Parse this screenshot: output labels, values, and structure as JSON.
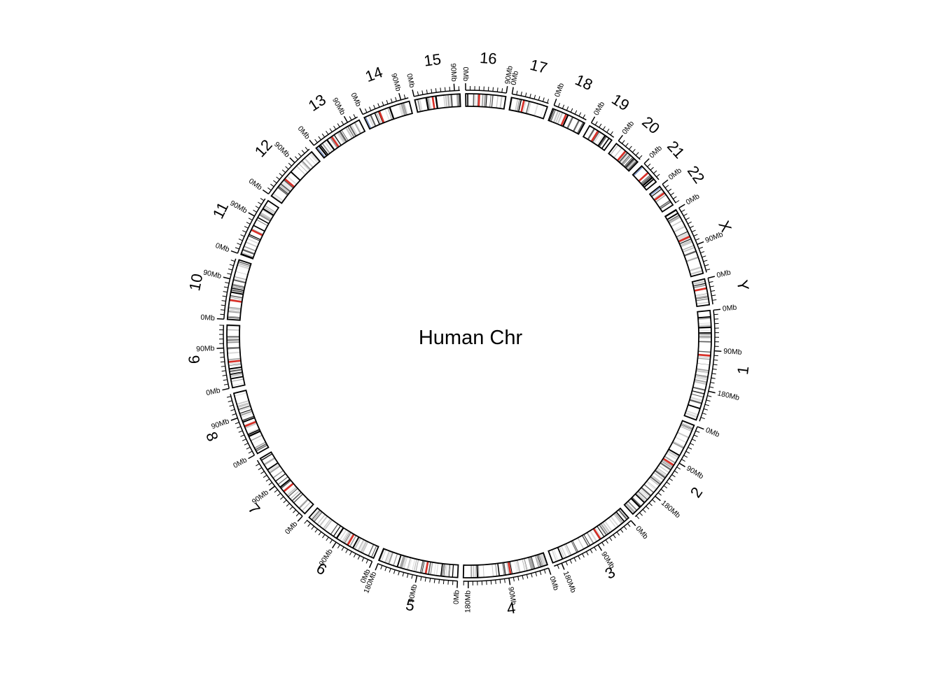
{
  "title": "Human Chr",
  "tick_unit": "Mb",
  "chart_data": {
    "type": "circos-ideogram",
    "center_label": "Human Chr",
    "tick_label_step_mb": 90,
    "minor_tick_step_mb": 10,
    "chromosomes": [
      {
        "name": "1",
        "length_mb": 249,
        "tick_labels": [
          "0Mb",
          "90Mb",
          "180Mb"
        ]
      },
      {
        "name": "2",
        "length_mb": 243,
        "tick_labels": [
          "0Mb",
          "90Mb",
          "180Mb"
        ]
      },
      {
        "name": "3",
        "length_mb": 198,
        "tick_labels": [
          "0Mb",
          "90Mb",
          "180Mb"
        ]
      },
      {
        "name": "4",
        "length_mb": 191,
        "tick_labels": [
          "0Mb",
          "90Mb",
          "180Mb"
        ]
      },
      {
        "name": "5",
        "length_mb": 181,
        "tick_labels": [
          "0Mb",
          "90Mb",
          "180Mb"
        ]
      },
      {
        "name": "6",
        "length_mb": 171,
        "tick_labels": [
          "0Mb",
          "90Mb"
        ]
      },
      {
        "name": "7",
        "length_mb": 159,
        "tick_labels": [
          "0Mb",
          "90Mb"
        ]
      },
      {
        "name": "8",
        "length_mb": 145,
        "tick_labels": [
          "0Mb",
          "90Mb"
        ]
      },
      {
        "name": "9",
        "length_mb": 141,
        "tick_labels": [
          "0Mb",
          "90Mb"
        ]
      },
      {
        "name": "10",
        "length_mb": 136,
        "tick_labels": [
          "0Mb",
          "90Mb"
        ]
      },
      {
        "name": "11",
        "length_mb": 135,
        "tick_labels": [
          "0Mb",
          "90Mb"
        ]
      },
      {
        "name": "12",
        "length_mb": 134,
        "tick_labels": [
          "0Mb",
          "90Mb"
        ]
      },
      {
        "name": "13",
        "length_mb": 115,
        "tick_labels": [
          "0Mb",
          "90Mb"
        ]
      },
      {
        "name": "14",
        "length_mb": 107,
        "tick_labels": [
          "0Mb",
          "90Mb"
        ]
      },
      {
        "name": "15",
        "length_mb": 102,
        "tick_labels": [
          "0Mb",
          "90Mb"
        ]
      },
      {
        "name": "16",
        "length_mb": 90,
        "tick_labels": [
          "0Mb",
          "90Mb"
        ]
      },
      {
        "name": "17",
        "length_mb": 83,
        "tick_labels": [
          "0Mb"
        ]
      },
      {
        "name": "18",
        "length_mb": 78,
        "tick_labels": [
          "0Mb"
        ]
      },
      {
        "name": "19",
        "length_mb": 59,
        "tick_labels": [
          "0Mb"
        ]
      },
      {
        "name": "20",
        "length_mb": 63,
        "tick_labels": [
          "0Mb"
        ]
      },
      {
        "name": "21",
        "length_mb": 48,
        "tick_labels": [
          "0Mb"
        ]
      },
      {
        "name": "22",
        "length_mb": 51,
        "tick_labels": [
          "0Mb"
        ]
      },
      {
        "name": "X",
        "length_mb": 155,
        "tick_labels": [
          "0Mb",
          "90Mb"
        ]
      },
      {
        "name": "Y",
        "length_mb": 59,
        "tick_labels": [
          "0Mb"
        ]
      }
    ],
    "band_colors": {
      "gneg": "#ffffff",
      "gpos25": "#c8c8c8",
      "gpos50": "#a0a0a0",
      "gpos75": "#606060",
      "gpos100": "#000000",
      "acen": "#d92f27",
      "gvar": "#dcdcdc",
      "stalk": "#6f8cc4"
    }
  }
}
